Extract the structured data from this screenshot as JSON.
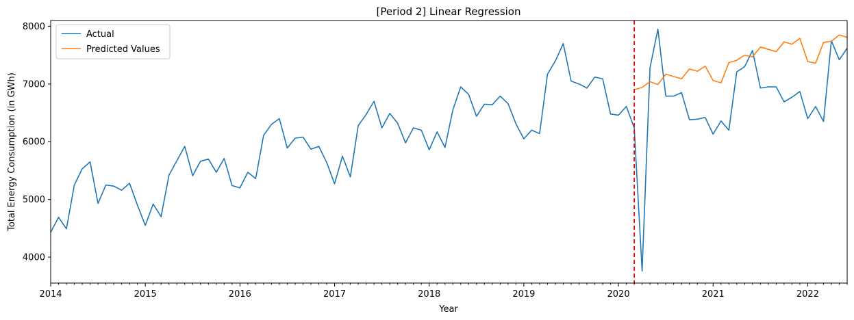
{
  "chart_data": {
    "type": "line",
    "title": "[Period 2] Linear Regression",
    "xlabel": "Year",
    "ylabel": "Total Energy Consumption (in GWh)",
    "xlim": [
      "2014-01",
      "2022-06"
    ],
    "ylim": [
      3550,
      8100
    ],
    "y_ticks": [
      4000,
      5000,
      6000,
      7000,
      8000
    ],
    "x_ticks": [
      "2014",
      "2015",
      "2016",
      "2017",
      "2018",
      "2019",
      "2020",
      "2021",
      "2022"
    ],
    "grid": false,
    "legend": "upper-left",
    "vline": {
      "x": "2020-03",
      "color": "#ff0000",
      "style": "dashed"
    },
    "series": [
      {
        "name": "Actual",
        "color": "#1f77b4",
        "start": "2014-01",
        "values": [
          4430,
          4690,
          4490,
          5250,
          5530,
          5650,
          4930,
          5250,
          5230,
          5160,
          5280,
          4900,
          4550,
          4920,
          4700,
          5420,
          5670,
          5920,
          5410,
          5660,
          5700,
          5470,
          5710,
          5240,
          5200,
          5470,
          5360,
          6110,
          6300,
          6400,
          5890,
          6060,
          6080,
          5870,
          5920,
          5640,
          5270,
          5750,
          5390,
          6280,
          6470,
          6700,
          6240,
          6490,
          6320,
          5980,
          6240,
          6200,
          5860,
          6170,
          5900,
          6550,
          6950,
          6820,
          6440,
          6650,
          6640,
          6790,
          6660,
          6310,
          6050,
          6200,
          6140,
          7170,
          7400,
          7700,
          7050,
          7000,
          6930,
          7120,
          7090,
          6480,
          6460,
          6610,
          6240,
          3760,
          7280,
          7950,
          6790,
          6790,
          6850,
          6380,
          6390,
          6420,
          6130,
          6360,
          6200,
          7210,
          7300,
          7580,
          6930,
          6950,
          6950,
          6690,
          6770,
          6870,
          6400,
          6610,
          6350,
          7750,
          7420,
          7620
        ]
      },
      {
        "name": "Predicted Values",
        "color": "#ff7f0e",
        "start": "2020-03",
        "values": [
          6900,
          6940,
          7040,
          6990,
          7170,
          7130,
          7090,
          7260,
          7220,
          7310,
          7060,
          7020,
          7370,
          7410,
          7500,
          7470,
          7640,
          7600,
          7560,
          7730,
          7690,
          7790,
          7390,
          7360,
          7720,
          7740,
          7850,
          7810
        ]
      }
    ]
  }
}
